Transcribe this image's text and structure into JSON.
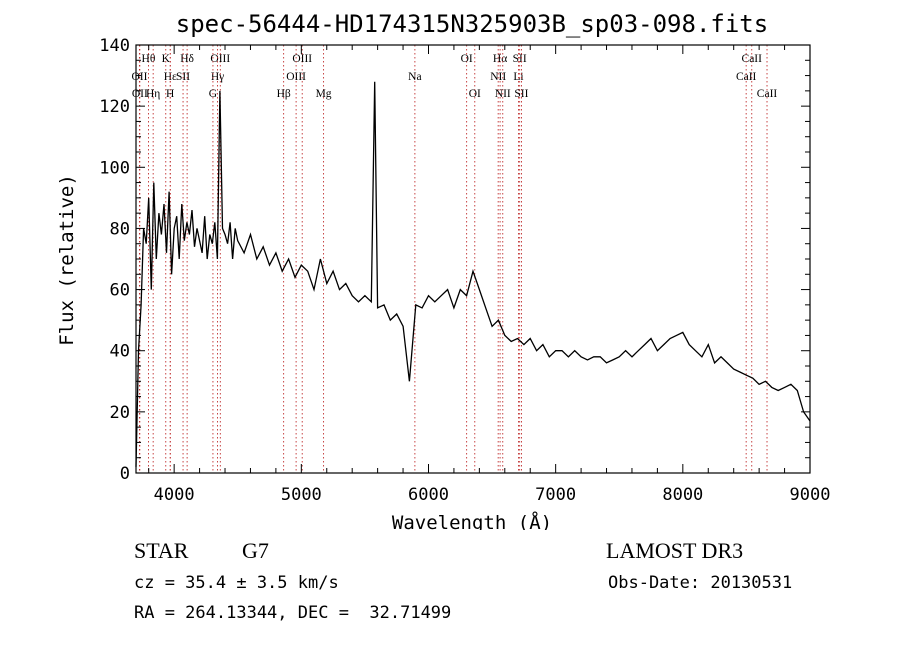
{
  "chart_data": {
    "type": "line",
    "title": "spec-56444-HD174315N325903B_sp03-098.fits",
    "xlabel": "Wavelength (Å)",
    "ylabel": "Flux (relative)",
    "xlim": [
      3700,
      9000
    ],
    "ylim": [
      0,
      140
    ],
    "xticks": [
      4000,
      5000,
      6000,
      7000,
      8000,
      9000
    ],
    "yticks": [
      0,
      20,
      40,
      60,
      80,
      100,
      120,
      140
    ],
    "xtick_labels": [
      "4000",
      "5000",
      "6000",
      "7000",
      "8000",
      "9000"
    ],
    "ytick_labels": [
      "0",
      "20",
      "40",
      "60",
      "80",
      "100",
      "120",
      "140"
    ],
    "series": [
      {
        "name": "flux",
        "x": [
          3700,
          3720,
          3740,
          3760,
          3780,
          3800,
          3820,
          3840,
          3860,
          3880,
          3900,
          3920,
          3940,
          3960,
          3980,
          4000,
          4020,
          4040,
          4060,
          4080,
          4100,
          4120,
          4140,
          4160,
          4180,
          4200,
          4220,
          4240,
          4260,
          4280,
          4300,
          4320,
          4340,
          4360,
          4380,
          4400,
          4420,
          4440,
          4460,
          4480,
          4500,
          4550,
          4600,
          4650,
          4700,
          4750,
          4800,
          4850,
          4900,
          4950,
          5000,
          5050,
          5100,
          5150,
          5200,
          5250,
          5300,
          5350,
          5400,
          5450,
          5500,
          5550,
          5577,
          5600,
          5650,
          5700,
          5750,
          5800,
          5850,
          5900,
          5950,
          6000,
          6050,
          6100,
          6150,
          6200,
          6250,
          6300,
          6350,
          6400,
          6450,
          6500,
          6550,
          6600,
          6650,
          6700,
          6750,
          6800,
          6850,
          6900,
          6950,
          7000,
          7050,
          7100,
          7150,
          7200,
          7250,
          7300,
          7350,
          7400,
          7450,
          7500,
          7550,
          7600,
          7650,
          7700,
          7750,
          7800,
          7850,
          7900,
          7950,
          8000,
          8050,
          8100,
          8150,
          8200,
          8250,
          8300,
          8350,
          8400,
          8450,
          8500,
          8550,
          8600,
          8650,
          8700,
          8750,
          8800,
          8850,
          8900,
          8950,
          9000
        ],
        "values": [
          2,
          40,
          55,
          80,
          75,
          90,
          60,
          95,
          70,
          85,
          78,
          88,
          72,
          92,
          65,
          80,
          84,
          70,
          88,
          76,
          82,
          78,
          86,
          74,
          80,
          76,
          72,
          84,
          70,
          78,
          75,
          82,
          70,
          125,
          80,
          78,
          75,
          82,
          70,
          80,
          76,
          72,
          78,
          70,
          74,
          68,
          72,
          66,
          70,
          64,
          68,
          66,
          60,
          70,
          62,
          66,
          60,
          62,
          58,
          56,
          58,
          56,
          128,
          54,
          55,
          50,
          52,
          48,
          30,
          55,
          54,
          58,
          56,
          58,
          60,
          54,
          60,
          58,
          66,
          60,
          54,
          48,
          50,
          45,
          43,
          44,
          42,
          44,
          40,
          42,
          38,
          40,
          40,
          38,
          40,
          38,
          37,
          38,
          38,
          36,
          37,
          38,
          40,
          38,
          40,
          42,
          44,
          40,
          42,
          44,
          45,
          46,
          42,
          40,
          38,
          42,
          36,
          38,
          36,
          34,
          33,
          32,
          31,
          29,
          30,
          28,
          27,
          28,
          29,
          27,
          20,
          17
        ]
      }
    ],
    "lines": [
      {
        "name": "Hθ",
        "x": 3798,
        "row": 1
      },
      {
        "name": "OII",
        "x": 3727,
        "row": 2
      },
      {
        "name": "OII",
        "x": 3730,
        "row": 3
      },
      {
        "name": "K",
        "x": 3934,
        "row": 1
      },
      {
        "name": "Hε",
        "x": 3970,
        "row": 2
      },
      {
        "name": "Hη",
        "x": 3835,
        "row": 3
      },
      {
        "name": "H",
        "x": 3969,
        "row": 3
      },
      {
        "name": "Hδ",
        "x": 4102,
        "row": 1
      },
      {
        "name": "SII",
        "x": 4070,
        "row": 2
      },
      {
        "name": "OIII",
        "x": 4363,
        "row": 1
      },
      {
        "name": "Hγ",
        "x": 4341,
        "row": 2
      },
      {
        "name": "G",
        "x": 4305,
        "row": 3
      },
      {
        "name": "Hβ",
        "x": 4861,
        "row": 3
      },
      {
        "name": "OIII",
        "x": 5007,
        "row": 1
      },
      {
        "name": "OIII",
        "x": 4959,
        "row": 2
      },
      {
        "name": "Mg",
        "x": 5175,
        "row": 3
      },
      {
        "name": "Na",
        "x": 5893,
        "row": 2
      },
      {
        "name": "OI",
        "x": 6300,
        "row": 1
      },
      {
        "name": "OI",
        "x": 6364,
        "row": 3
      },
      {
        "name": "Hα",
        "x": 6563,
        "row": 1
      },
      {
        "name": "NII",
        "x": 6548,
        "row": 2
      },
      {
        "name": "NII",
        "x": 6584,
        "row": 3
      },
      {
        "name": "SII",
        "x": 6717,
        "row": 1
      },
      {
        "name": "Li",
        "x": 6708,
        "row": 2
      },
      {
        "name": "SII",
        "x": 6731,
        "row": 3
      },
      {
        "name": "CaII",
        "x": 8542,
        "row": 1
      },
      {
        "name": "CaII",
        "x": 8498,
        "row": 2
      },
      {
        "name": "CaII",
        "x": 8662,
        "row": 3
      }
    ]
  },
  "info": {
    "object_type": "STAR",
    "subclass": "G7",
    "survey": "LAMOST DR3",
    "cz": "cz = 35.4 ± 3.5 km/s",
    "obs_date": "Obs-Date: 20130531",
    "radec": "RA = 264.13344, DEC =  32.71499"
  }
}
